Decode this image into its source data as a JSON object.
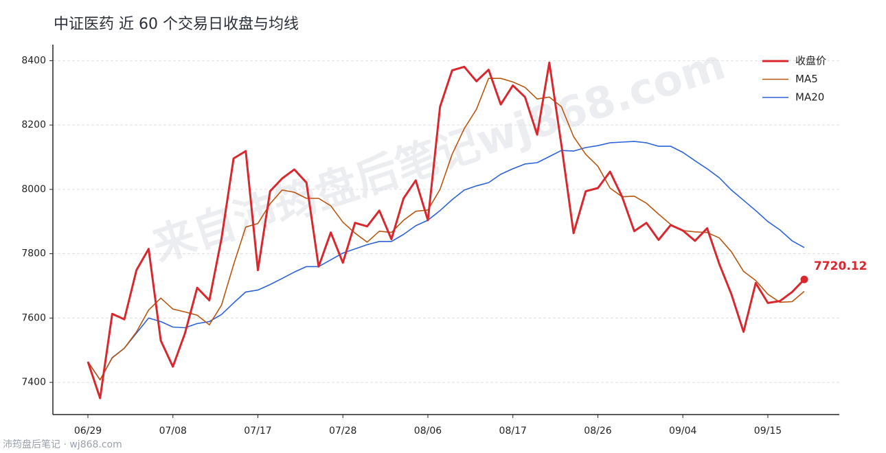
{
  "chart_data": {
    "type": "line",
    "title": "中证医药 近 60 个交易日收盘与均线",
    "watermark": "来自沛筠盘后笔记wj868.com",
    "footer": "沛筠盘后笔记 · wj868.com",
    "categories": [
      "06/29",
      null,
      null,
      null,
      null,
      null,
      null,
      "07/08",
      null,
      null,
      null,
      null,
      null,
      null,
      "07/17",
      null,
      null,
      null,
      null,
      null,
      null,
      "07/28",
      null,
      null,
      null,
      null,
      null,
      null,
      "08/06",
      null,
      null,
      null,
      null,
      null,
      null,
      "08/17",
      null,
      null,
      null,
      null,
      null,
      null,
      "08/26",
      null,
      null,
      null,
      null,
      null,
      null,
      "09/04",
      null,
      null,
      null,
      null,
      null,
      null,
      "09/15",
      null,
      null,
      null
    ],
    "series": [
      {
        "name": "收盘价",
        "color": "#d9272e",
        "width": 3,
        "values": [
          7464,
          7351,
          7613,
          7596,
          7749,
          7815,
          7530,
          7449,
          7553,
          7694,
          7655,
          7847,
          8096,
          8119,
          7749,
          7994,
          8034,
          8062,
          8021,
          7760,
          7866,
          7772,
          7896,
          7885,
          7934,
          7845,
          7972,
          8028,
          7904,
          8257,
          8370,
          8381,
          8336,
          8372,
          8264,
          8323,
          8287,
          8170,
          8394,
          8138,
          7864,
          7994,
          8004,
          8055,
          7977,
          7870,
          7896,
          7843,
          7889,
          7872,
          7840,
          7879,
          7768,
          7674,
          7557,
          7709,
          7647,
          7653,
          7681,
          7720.12
        ]
      },
      {
        "name": "MA5",
        "color": "#b8560f",
        "width": 1.6,
        "values": [
          7464,
          7408,
          7476,
          7506,
          7557,
          7625,
          7662,
          7628,
          7619,
          7609,
          7579,
          7640,
          7766,
          7883,
          7894,
          7955,
          7998,
          7991,
          7972,
          7972,
          7949,
          7898,
          7864,
          7836,
          7870,
          7866,
          7904,
          7932,
          7936,
          8000,
          8109,
          8189,
          8249,
          8345,
          8345,
          8334,
          8317,
          8281,
          8287,
          8257,
          8164,
          8109,
          8072,
          8004,
          7977,
          7979,
          7957,
          7923,
          7891,
          7872,
          7868,
          7866,
          7849,
          7806,
          7745,
          7717,
          7674,
          7649,
          7651,
          7683
        ]
      },
      {
        "name": "MA20",
        "color": "#2a62d9",
        "width": 1.6,
        "values": [
          7464,
          7408,
          7477,
          7506,
          7553,
          7600,
          7589,
          7572,
          7570,
          7583,
          7589,
          7611,
          7647,
          7681,
          7687,
          7704,
          7723,
          7743,
          7760,
          7760,
          7781,
          7802,
          7815,
          7828,
          7838,
          7838,
          7860,
          7887,
          7904,
          7934,
          7968,
          7998,
          8011,
          8021,
          8047,
          8064,
          8079,
          8083,
          8102,
          8121,
          8119,
          8130,
          8136,
          8145,
          8147,
          8149,
          8145,
          8134,
          8134,
          8115,
          8089,
          8064,
          8036,
          7998,
          7966,
          7934,
          7900,
          7874,
          7840,
          7819
        ]
      }
    ],
    "ylim": [
      7300,
      8450
    ],
    "yticks": [
      7400,
      7600,
      7800,
      8000,
      8200,
      8400
    ],
    "grid": true,
    "legend": "upper right"
  }
}
